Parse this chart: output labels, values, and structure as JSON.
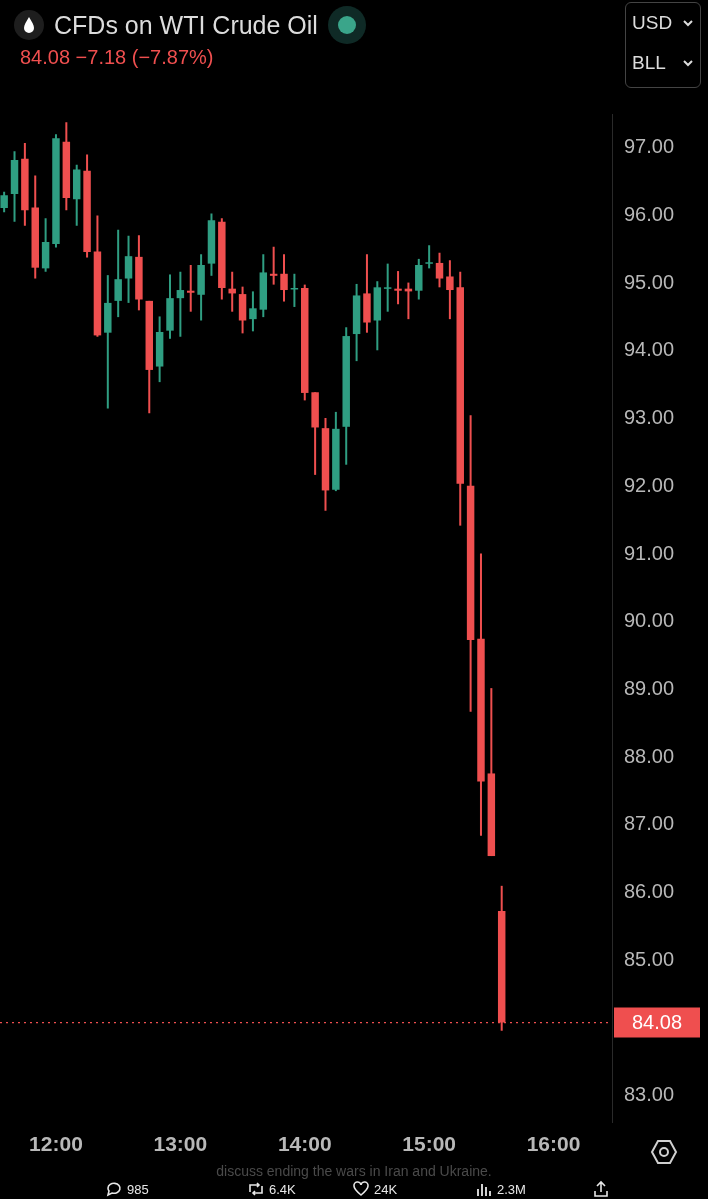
{
  "chart_data": {
    "type": "candlestick",
    "title": "CFDs on WTI Crude Oil",
    "subtitle": "84.08 −7.18 (−7.87%)",
    "x": [
      11.5833,
      11.6667,
      11.75,
      11.8333,
      11.9167,
      12,
      12.0833,
      12.1667,
      12.25,
      12.3333,
      12.4167,
      12.5,
      12.5833,
      12.6667,
      12.75,
      12.8333,
      12.9167,
      13,
      13.0833,
      13.1667,
      13.25,
      13.3333,
      13.4167,
      13.5,
      13.5833,
      13.6667,
      13.75,
      13.8333,
      13.9167,
      14,
      14.0833,
      14.1667,
      14.25,
      14.3333,
      14.4167,
      14.5,
      14.5833,
      14.6667,
      14.75,
      14.8333,
      14.9167,
      15,
      15.0833,
      15.1667,
      15.25,
      15.3333,
      15.4167,
      15.5,
      15.5833
    ],
    "ohlc": [
      [
        96.11,
        96.35,
        96.05,
        96.3
      ],
      [
        96.32,
        96.95,
        95.91,
        96.82
      ],
      [
        96.84,
        97.07,
        95.85,
        96.08
      ],
      [
        96.12,
        96.59,
        95.07,
        95.23
      ],
      [
        95.22,
        95.96,
        95.17,
        95.61
      ],
      [
        95.58,
        97.2,
        95.53,
        97.14
      ],
      [
        97.09,
        97.38,
        96.08,
        96.26
      ],
      [
        96.24,
        96.75,
        95.85,
        96.68
      ],
      [
        96.66,
        96.9,
        95.38,
        95.46
      ],
      [
        95.47,
        96.0,
        94.21,
        94.23
      ],
      [
        94.27,
        95.12,
        93.15,
        94.71
      ],
      [
        94.74,
        95.79,
        94.5,
        95.06
      ],
      [
        95.07,
        95.7,
        94.71,
        95.4
      ],
      [
        95.39,
        95.71,
        94.6,
        94.76
      ],
      [
        94.74,
        94.74,
        93.08,
        93.72
      ],
      [
        93.77,
        94.51,
        93.54,
        94.28
      ],
      [
        94.3,
        95.13,
        94.18,
        94.78
      ],
      [
        94.78,
        95.17,
        94.21,
        94.9
      ],
      [
        94.89,
        95.27,
        94.58,
        94.86
      ],
      [
        94.83,
        95.43,
        94.45,
        95.27
      ],
      [
        95.29,
        96.03,
        95.11,
        95.93
      ],
      [
        95.91,
        95.96,
        94.76,
        94.93
      ],
      [
        94.92,
        95.17,
        94.58,
        94.85
      ],
      [
        94.84,
        94.95,
        94.26,
        94.45
      ],
      [
        94.47,
        94.88,
        94.29,
        94.63
      ],
      [
        94.61,
        95.43,
        94.5,
        95.16
      ],
      [
        95.14,
        95.54,
        94.98,
        95.11
      ],
      [
        95.14,
        95.43,
        94.73,
        94.9
      ],
      [
        94.91,
        95.14,
        94.65,
        94.93
      ],
      [
        94.93,
        94.98,
        93.27,
        93.38
      ],
      [
        93.39,
        93.39,
        92.17,
        92.87
      ],
      [
        92.86,
        93.01,
        91.64,
        91.94
      ],
      [
        91.95,
        93.1,
        91.93,
        92.85
      ],
      [
        92.88,
        94.35,
        92.32,
        94.22
      ],
      [
        94.25,
        94.99,
        93.85,
        94.82
      ],
      [
        94.85,
        95.43,
        94.27,
        94.42
      ],
      [
        94.45,
        95.03,
        94.01,
        94.94
      ],
      [
        94.92,
        95.29,
        94.58,
        94.94
      ],
      [
        94.92,
        95.18,
        94.69,
        94.89
      ],
      [
        94.92,
        95.01,
        94.47,
        94.88
      ],
      [
        94.89,
        95.36,
        94.76,
        95.27
      ],
      [
        95.29,
        95.56,
        95.22,
        95.31
      ],
      [
        95.3,
        95.45,
        94.94,
        95.07
      ],
      [
        95.1,
        95.34,
        94.47,
        94.9
      ],
      [
        94.94,
        95.17,
        91.42,
        92.04
      ],
      [
        92.01,
        93.05,
        88.67,
        89.73
      ],
      [
        89.75,
        91.01,
        86.84,
        87.64
      ],
      [
        87.76,
        89.02,
        86.54,
        86.54
      ],
      [
        85.73,
        86.1,
        83.96,
        84.08
      ]
    ],
    "colors": [
      "#2f9e82",
      "#2f9e82",
      "#ef4f4f",
      "#ef4f4f",
      "#2f9e82",
      "#2f9e82",
      "#ef4f4f",
      "#2f9e82",
      "#ef4f4f",
      "#ef4f4f",
      "#2f9e82",
      "#2f9e82",
      "#2f9e82",
      "#ef4f4f",
      "#ef4f4f",
      "#2f9e82",
      "#2f9e82",
      "#2f9e82",
      "#ef4f4f",
      "#2f9e82",
      "#2f9e82",
      "#ef4f4f",
      "#ef4f4f",
      "#ef4f4f",
      "#2f9e82",
      "#2f9e82",
      "#ef4f4f",
      "#ef4f4f",
      "#2f9e82",
      "#ef4f4f",
      "#ef4f4f",
      "#ef4f4f",
      "#2f9e82",
      "#2f9e82",
      "#2f9e82",
      "#ef4f4f",
      "#2f9e82",
      "#2f9e82",
      "#ef4f4f",
      "#ef4f4f",
      "#2f9e82",
      "#2f9e82",
      "#ef4f4f",
      "#ef4f4f",
      "#ef4f4f",
      "#ef4f4f",
      "#ef4f4f",
      "#ef4f4f",
      "#ef4f4f"
    ],
    "xlim": [
      11.55,
      16.47
    ],
    "xticks": [
      {
        "value": 12,
        "label": "12:00"
      },
      {
        "value": 13,
        "label": "13:00"
      },
      {
        "value": 14,
        "label": "14:00"
      },
      {
        "value": 15,
        "label": "15:00"
      },
      {
        "value": 16,
        "label": "16:00"
      }
    ],
    "ylim": [
      82.6,
      97.5
    ],
    "yticks": [
      {
        "value": 83,
        "label": "83.00"
      },
      {
        "value": 85,
        "label": "85.00"
      },
      {
        "value": 86,
        "label": "86.00"
      },
      {
        "value": 87,
        "label": "87.00"
      },
      {
        "value": 88,
        "label": "88.00"
      },
      {
        "value": 89,
        "label": "89.00"
      },
      {
        "value": 90,
        "label": "90.00"
      },
      {
        "value": 91,
        "label": "91.00"
      },
      {
        "value": 92,
        "label": "92.00"
      },
      {
        "value": 93,
        "label": "93.00"
      },
      {
        "value": 94,
        "label": "94.00"
      },
      {
        "value": 95,
        "label": "95.00"
      },
      {
        "value": 96,
        "label": "96.00"
      },
      {
        "value": 97,
        "label": "97.00"
      }
    ],
    "ref_lines": [
      {
        "axis": "y",
        "value": 84.08,
        "label": "84.08",
        "color": "#ef4f4f",
        "line_style": "dotted"
      }
    ],
    "annotations": [
      "USD",
      "BLL",
      "discuss ending the wars in Iran and Ukraine.",
      "985",
      "6.4K",
      "24K",
      "2.3M"
    ],
    "grid": false
  }
}
